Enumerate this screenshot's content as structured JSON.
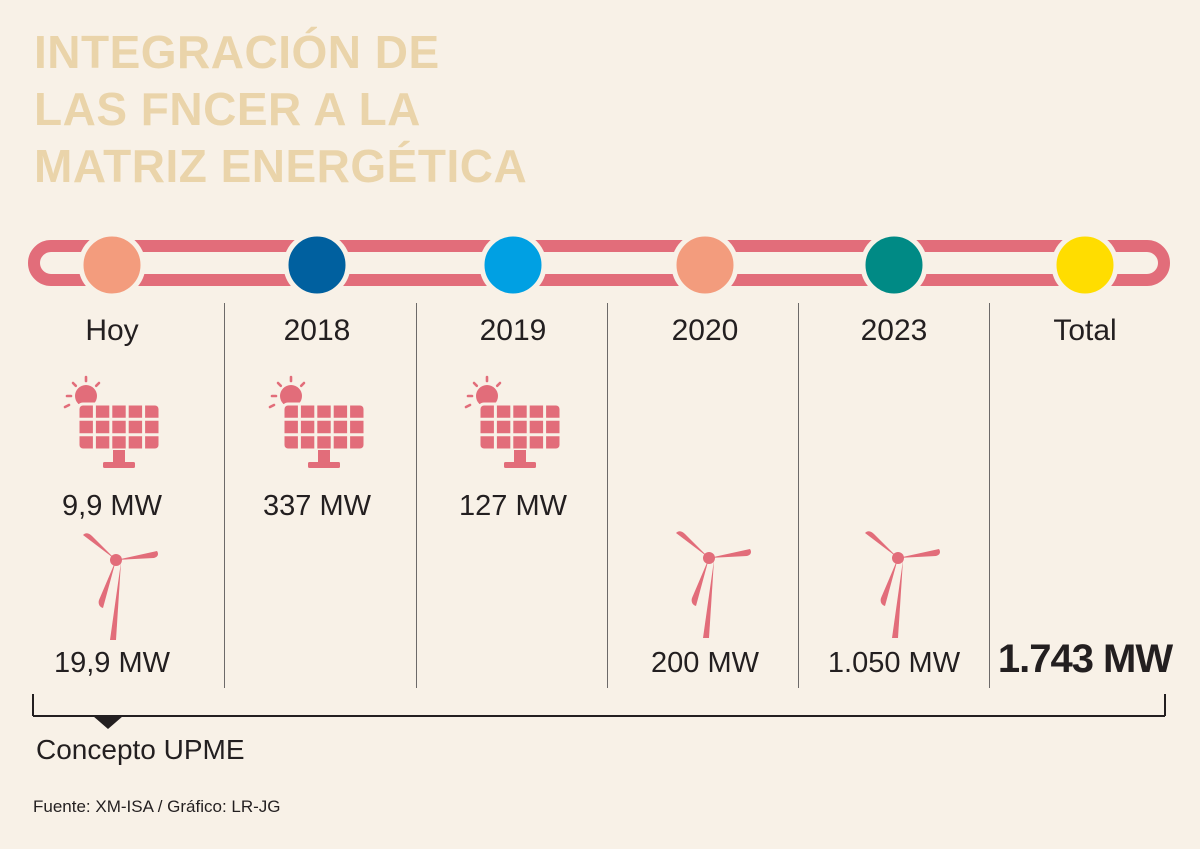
{
  "title": {
    "line1": "INTEGRACIÓN DE",
    "line2": "LAS FNCER A LA",
    "line3": "MATRIZ ENERGÉTICA"
  },
  "colors": {
    "title": "#ead4aa",
    "track": "#e26d7a",
    "icon": "#e26d7a",
    "background": "#f8f1e7"
  },
  "chart_data": {
    "type": "table",
    "title": "INTEGRACIÓN DE LAS FNCER A LA MATRIZ ENERGÉTICA",
    "unit": "MW",
    "columns": [
      {
        "label": "Hoy",
        "dot_color": "#f39c7d",
        "solar_mw": 9.9,
        "wind_mw": 19.9,
        "solar_label": "9,9 MW",
        "wind_label": "19,9 MW"
      },
      {
        "label": "2018",
        "dot_color": "#00609f",
        "solar_mw": 337,
        "solar_label": "337 MW"
      },
      {
        "label": "2019",
        "dot_color": "#00a0e3",
        "solar_mw": 127,
        "solar_label": "127 MW"
      },
      {
        "label": "2020",
        "dot_color": "#f39c7d",
        "wind_mw": 200,
        "wind_label": "200 MW"
      },
      {
        "label": "2023",
        "dot_color": "#008a85",
        "wind_mw": 1050,
        "wind_label": "1.050 MW"
      },
      {
        "label": "Total",
        "dot_color": "#ffdd00",
        "total_mw": 1743,
        "total_label": "1.743 MW"
      }
    ],
    "bracket_label": "Concepto UPME",
    "bracket_span": [
      "Hoy",
      "Total"
    ]
  },
  "footer": {
    "source": "Fuente: XM-ISA / Gráfico: LR-JG"
  }
}
